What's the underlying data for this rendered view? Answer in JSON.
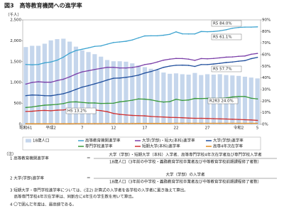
{
  "chart_data": {
    "type": "bar",
    "title": "図3　高等教育機関への進学率",
    "y_unit": "（千人）",
    "categories": [
      "昭和61",
      null,
      null,
      null,
      "平成2",
      null,
      null,
      null,
      null,
      "7",
      null,
      null,
      null,
      null,
      "12",
      null,
      null,
      null,
      null,
      "17",
      null,
      null,
      null,
      null,
      "22",
      null,
      null,
      null,
      null,
      "27",
      null,
      null,
      null,
      null,
      "令和2",
      null,
      null,
      "5"
    ],
    "ylim": [
      0,
      2500
    ],
    "yticks": [
      0,
      500,
      {
        "value": 1000,
        "label": "1,000"
      },
      {
        "value": 1500,
        "label": "1,500"
      },
      {
        "value": 2000,
        "label": "2,000"
      },
      {
        "value": 2500,
        "label": "2,500"
      }
    ],
    "y2lim": [
      0,
      90
    ],
    "y2ticks": [
      {
        "value": 0,
        "label": "0%"
      },
      {
        "value": 10,
        "label": "10%"
      },
      {
        "value": 20,
        "label": "20%"
      },
      {
        "value": 30,
        "label": "30%"
      },
      {
        "value": 40,
        "label": "40%"
      },
      {
        "value": 50,
        "label": "50%"
      },
      {
        "value": 60,
        "label": "60%"
      },
      {
        "value": 70,
        "label": "70%"
      },
      {
        "value": 80,
        "label": "80%"
      },
      {
        "value": 90,
        "label": "90%"
      }
    ],
    "series": [
      {
        "name": "18歳人口",
        "type": "bar",
        "color": "#c5d6ec",
        "values": [
          1850,
          1880,
          1880,
          1930,
          2010,
          2040,
          2050,
          1980,
          1860,
          1770,
          1730,
          1680,
          1620,
          1540,
          1510,
          1510,
          1500,
          1460,
          1410,
          1370,
          1330,
          1300,
          1240,
          1210,
          1220,
          1200,
          1190,
          1230,
          1180,
          1200,
          1190,
          1200,
          1180,
          1170,
          1160,
          1140,
          1120,
          1100
        ]
      },
      {
        "name": "高等教育機関進学率",
        "type": "line",
        "axis": "y2",
        "color": "#3fa4d0",
        "values": [
          51.6,
          51.3,
          51.6,
          53.0,
          53.7,
          55.3,
          57.9,
          61.3,
          63.6,
          64.7,
          65.9,
          67.2,
          67.6,
          69.1,
          70.5,
          71.0,
          71.6,
          72.7,
          74.5,
          76.2,
          76.3,
          76.3,
          76.8,
          77.6,
          79.7,
          78.0,
          77.9,
          77.9,
          80.0,
          79.8,
          80.0,
          80.6,
          81.5,
          82.8,
          83.5,
          83.8,
          83.8,
          84.0
        ]
      },
      {
        "name": "大学(学部)・短大(本科)進学率",
        "type": "line",
        "axis": "y2",
        "color": "#7b3fa8",
        "values": [
          34.7,
          36.1,
          36.7,
          36.3,
          36.3,
          37.7,
          38.9,
          40.9,
          43.3,
          45.2,
          46.2,
          47.3,
          48.2,
          49.1,
          49.1,
          48.6,
          48.6,
          49.0,
          49.9,
          51.5,
          52.3,
          53.7,
          55.3,
          56.2,
          56.8,
          56.7,
          56.2,
          55.1,
          56.7,
          56.5,
          56.8,
          57.3,
          57.9,
          58.1,
          58.6,
          58.9,
          60.4,
          61.1
        ]
      },
      {
        "name": "大学(学部)進学率",
        "type": "line",
        "axis": "y2",
        "color": "#1f4e9c",
        "values": [
          24.7,
          25.3,
          25.1,
          24.7,
          24.6,
          25.5,
          26.4,
          28.0,
          30.1,
          32.1,
          33.4,
          34.9,
          36.4,
          38.2,
          39.7,
          39.9,
          40.5,
          41.3,
          42.4,
          44.2,
          45.5,
          47.2,
          49.1,
          50.2,
          50.9,
          51.0,
          50.8,
          49.9,
          51.5,
          51.5,
          52.0,
          52.6,
          53.3,
          53.7,
          54.4,
          54.9,
          56.6,
          57.7
        ]
      },
      {
        "name": "専門学校進学率",
        "type": "line",
        "axis": "y2",
        "color": "#3a9a3a",
        "values": [
          14.5,
          15.0,
          15.8,
          16.5,
          16.8,
          17.2,
          17.9,
          19.2,
          19.4,
          18.9,
          18.4,
          18.4,
          18.0,
          18.1,
          18.2,
          19.4,
          20.0,
          20.8,
          21.9,
          21.7,
          21.1,
          20.0,
          19.2,
          19.6,
          21.6,
          20.6,
          21.0,
          22.3,
          22.2,
          22.4,
          22.3,
          22.4,
          22.7,
          23.6,
          24.0,
          24.0,
          22.5,
          21.9
        ]
      },
      {
        "name": "短期大学(本科)進学率",
        "type": "line",
        "axis": "y2",
        "color": "#d03030",
        "values": [
          11.1,
          11.3,
          11.8,
          12.0,
          11.7,
          12.2,
          12.4,
          13.2,
          13.1,
          13.1,
          12.7,
          12.4,
          11.8,
          10.9,
          9.4,
          8.6,
          8.1,
          7.7,
          7.5,
          7.3,
          6.8,
          6.5,
          6.3,
          6.0,
          5.9,
          5.7,
          5.4,
          5.2,
          5.2,
          5.1,
          4.9,
          4.7,
          4.6,
          4.4,
          4.2,
          4.0,
          3.8,
          3.4
        ]
      },
      {
        "name": "高専4年次在学率",
        "type": "line",
        "axis": "y2",
        "color": "#e08a20",
        "values": [
          0.5,
          0.5,
          0.5,
          0.5,
          0.5,
          0.5,
          0.5,
          0.5,
          0.6,
          0.6,
          0.6,
          0.6,
          0.6,
          0.7,
          0.7,
          0.7,
          0.7,
          0.7,
          0.8,
          0.8,
          0.8,
          0.8,
          0.8,
          0.8,
          0.9,
          0.9,
          0.9,
          0.9,
          0.9,
          0.9,
          0.9,
          0.9,
          0.9,
          0.9,
          0.9,
          0.9,
          0.9,
          0.9
        ]
      }
    ],
    "annotations": [
      "R5 84.0%",
      "R5 61.1%",
      "R5 57.7%",
      "R2R3 24.0%",
      "H5 13.2%"
    ],
    "notes": [
      "（注）",
      "1 高等教育機関進学率",
      "大学（学部）・短期大学（本科）入学者、高等専門学校4年次在学者及び専門学校入学者",
      "18歳人口（3年前の中学校・義務教育学校卒業者及び中等教育学校前期課程修了者数）",
      "2 大学(学部)進学率",
      "大学（学部）の入学者",
      "18歳人口（3年前の中学校・義務教育学校卒業者及び中等教育学校前期課程修了者数）",
      "3 短期大学・専門学校進学率については、(注2) 計算式の入学者を各学校の入学者に置き換えて算出。",
      "　高等専門学校4年次在学率は、同割合に4年生の学生数を用いて算出。",
      "4 〇で囲んだ年度は、最高値である。"
    ]
  }
}
